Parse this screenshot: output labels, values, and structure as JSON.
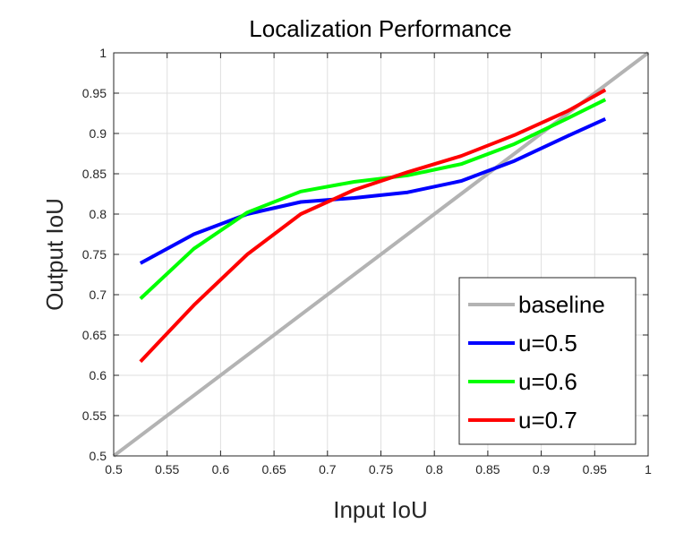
{
  "chart_data": {
    "type": "line",
    "title": "Localization Performance",
    "xlabel": "Input IoU",
    "ylabel": "Output IoU",
    "xlim": [
      0.5,
      1.0
    ],
    "ylim": [
      0.5,
      1.0
    ],
    "xticks": [
      "0.5",
      "0.55",
      "0.6",
      "0.65",
      "0.7",
      "0.75",
      "0.8",
      "0.85",
      "0.9",
      "0.95",
      "1"
    ],
    "yticks": [
      "0.5",
      "0.55",
      "0.6",
      "0.65",
      "0.7",
      "0.75",
      "0.8",
      "0.85",
      "0.9",
      "0.95",
      "1"
    ],
    "grid": true,
    "legend_position": "bottom-right",
    "series": [
      {
        "name": "baseline",
        "color": "#b3b3b3",
        "x": [
          0.5,
          1.0
        ],
        "y": [
          0.5,
          1.0
        ]
      },
      {
        "name": "u=0.5",
        "color": "#0000ff",
        "x": [
          0.525,
          0.575,
          0.625,
          0.675,
          0.725,
          0.775,
          0.825,
          0.875,
          0.925,
          0.96
        ],
        "y": [
          0.739,
          0.775,
          0.8,
          0.815,
          0.82,
          0.827,
          0.841,
          0.866,
          0.897,
          0.918
        ]
      },
      {
        "name": "u=0.6",
        "color": "#00ff00",
        "x": [
          0.525,
          0.575,
          0.625,
          0.675,
          0.725,
          0.775,
          0.825,
          0.875,
          0.925,
          0.96
        ],
        "y": [
          0.695,
          0.757,
          0.802,
          0.828,
          0.84,
          0.848,
          0.862,
          0.887,
          0.919,
          0.942
        ]
      },
      {
        "name": "u=0.7",
        "color": "#ff0000",
        "x": [
          0.525,
          0.575,
          0.625,
          0.675,
          0.725,
          0.775,
          0.825,
          0.875,
          0.925,
          0.96
        ],
        "y": [
          0.617,
          0.687,
          0.75,
          0.8,
          0.83,
          0.852,
          0.872,
          0.898,
          0.928,
          0.954
        ]
      }
    ]
  }
}
